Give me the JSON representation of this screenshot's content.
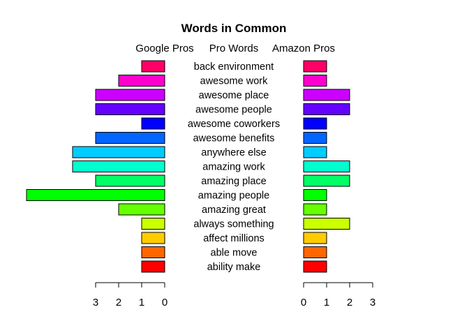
{
  "chart_data": {
    "type": "bar",
    "title": "Words in Common",
    "left_header": "Google Pros",
    "center_header": "Pro Words",
    "right_header": "Amazon Pros",
    "categories": [
      "ability make",
      "able move",
      "affect millions",
      "always something",
      "amazing great",
      "amazing people",
      "amazing place",
      "amazing work",
      "anywhere else",
      "awesome benefits",
      "awesome coworkers",
      "awesome people",
      "awesome place",
      "awesome work",
      "back environment"
    ],
    "series": [
      {
        "name": "Google Pros",
        "values": [
          1,
          1,
          1,
          1,
          2,
          6,
          3,
          4,
          4,
          3,
          1,
          3,
          3,
          2,
          1
        ]
      },
      {
        "name": "Amazon Pros",
        "values": [
          1,
          1,
          1,
          2,
          1,
          1,
          2,
          2,
          1,
          1,
          1,
          2,
          2,
          1,
          1
        ]
      }
    ],
    "colors": [
      "#FF0000",
      "#FF6600",
      "#FFCC00",
      "#CCFF00",
      "#66FF00",
      "#00FF00",
      "#00FF66",
      "#00FFCC",
      "#00CCFF",
      "#0066FF",
      "#0000FF",
      "#6600FF",
      "#CC00FF",
      "#FF00CC",
      "#FF0066"
    ],
    "left_axis_ticks": [
      "3",
      "2",
      "1",
      "0"
    ],
    "right_axis_ticks": [
      "0",
      "1",
      "2",
      "3"
    ],
    "axis_range": [
      0,
      3
    ],
    "grid": false,
    "legend": "none"
  }
}
